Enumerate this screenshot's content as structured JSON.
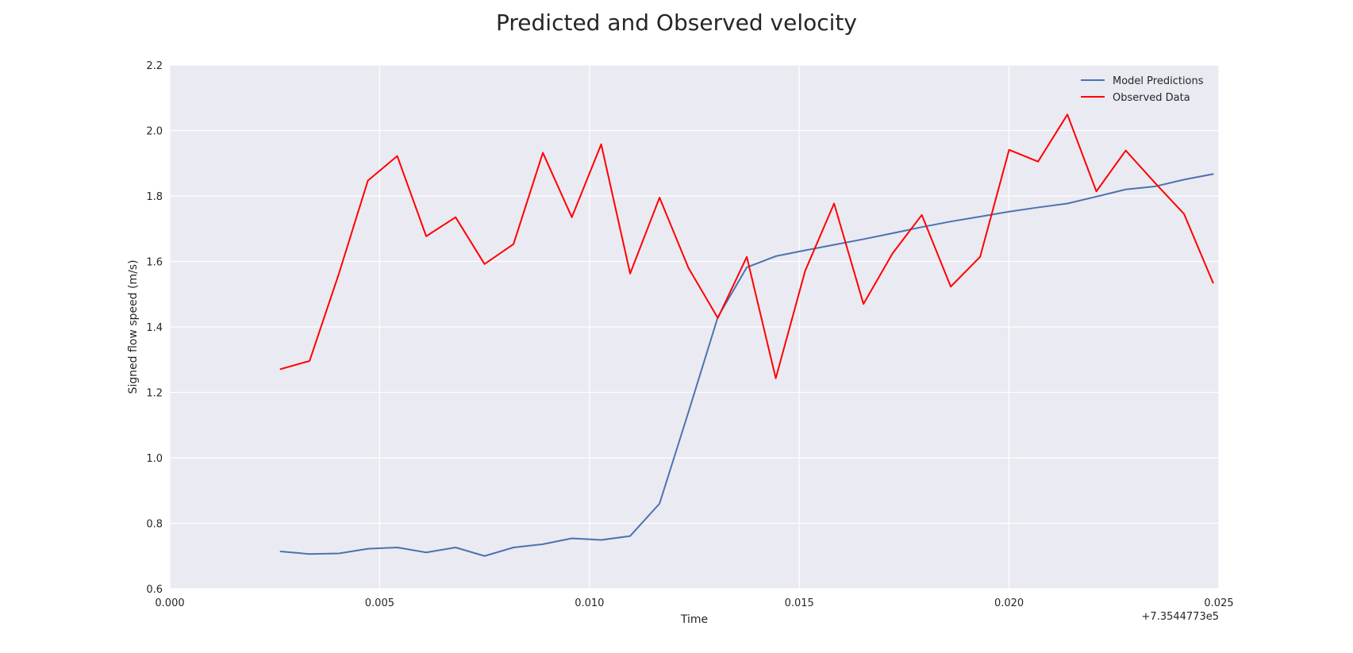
{
  "chart_data": {
    "type": "line",
    "title": "Predicted and Observed velocity",
    "xlabel": "Time",
    "ylabel": "Signed flow speed (m/s)",
    "x_offset_label": "+7.3544773e5",
    "xlim": [
      0.0,
      0.025
    ],
    "ylim": [
      0.6,
      2.2
    ],
    "xticks": [
      0.0,
      0.005,
      0.01,
      0.015,
      0.02,
      0.025
    ],
    "xtick_labels": [
      "0.000",
      "0.005",
      "0.010",
      "0.015",
      "0.020",
      "0.025"
    ],
    "yticks": [
      0.6,
      0.8,
      1.0,
      1.2,
      1.4,
      1.6,
      1.8,
      2.0,
      2.2
    ],
    "ytick_labels": [
      "0.6",
      "0.8",
      "1.0",
      "1.2",
      "1.4",
      "1.6",
      "1.8",
      "2.0",
      "2.2"
    ],
    "grid": true,
    "legend_position": "top-right",
    "x": [
      0.00264,
      0.00333,
      0.00403,
      0.00472,
      0.00542,
      0.00611,
      0.00681,
      0.0075,
      0.00819,
      0.00889,
      0.00958,
      0.01028,
      0.01097,
      0.01167,
      0.01236,
      0.01306,
      0.01375,
      0.01444,
      0.01514,
      0.01583,
      0.01653,
      0.01722,
      0.01792,
      0.01861,
      0.01931,
      0.02,
      0.02069,
      0.02139,
      0.02208,
      0.02278,
      0.02347,
      0.02417,
      0.02486
    ],
    "series": [
      {
        "name": "Model Predictions",
        "color": "#4c72b0",
        "values": [
          0.714,
          0.706,
          0.708,
          0.722,
          0.726,
          0.711,
          0.726,
          0.7,
          0.726,
          0.736,
          0.754,
          0.749,
          0.761,
          0.86,
          1.14,
          1.43,
          1.582,
          1.616,
          1.634,
          1.651,
          1.668,
          1.686,
          1.705,
          1.722,
          1.737,
          1.752,
          1.765,
          1.777,
          1.798,
          1.82,
          1.829,
          1.85,
          1.867
        ]
      },
      {
        "name": "Observed Data",
        "color": "#ff0000",
        "values": [
          1.271,
          1.296,
          1.563,
          1.847,
          1.922,
          1.677,
          1.735,
          1.592,
          1.653,
          1.932,
          1.735,
          1.958,
          1.563,
          1.795,
          1.58,
          1.427,
          1.614,
          1.243,
          1.571,
          1.777,
          1.47,
          1.624,
          1.742,
          1.523,
          1.614,
          1.941,
          1.905,
          2.049,
          1.814,
          1.939,
          1.841,
          1.745,
          1.535
        ]
      }
    ]
  }
}
